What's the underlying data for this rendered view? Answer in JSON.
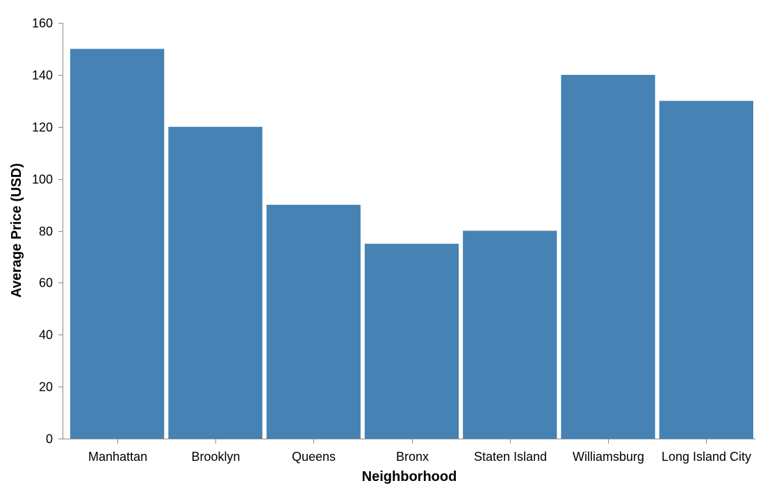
{
  "chart_data": {
    "type": "bar",
    "categories": [
      "Manhattan",
      "Brooklyn",
      "Queens",
      "Bronx",
      "Staten Island",
      "Williamsburg",
      "Long Island City"
    ],
    "values": [
      150,
      120,
      90,
      75,
      80,
      140,
      130
    ],
    "xlabel": "Neighborhood",
    "ylabel": "Average Price (USD)",
    "ylim": [
      0,
      160
    ],
    "yticks": [
      0,
      20,
      40,
      60,
      80,
      100,
      120,
      140,
      160
    ],
    "grid": false,
    "legend": "none",
    "colors": {
      "bar": "#4682b4",
      "axis": "#888888",
      "text": "#000000"
    }
  }
}
